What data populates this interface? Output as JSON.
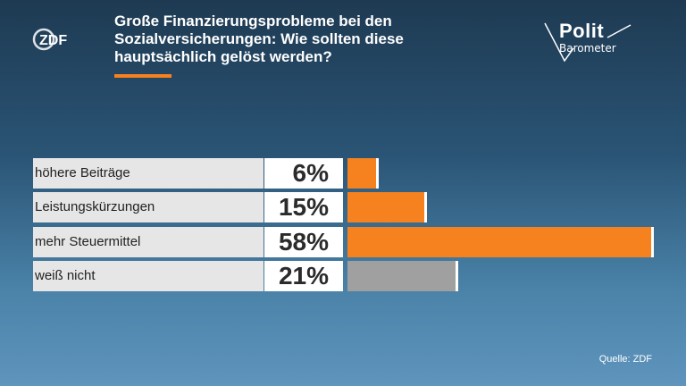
{
  "header": {
    "title": "Große Finanzierungsprobleme bei den Sozialversicherungen: Wie sollten diese hauptsächlich gelöst werden?",
    "brand_logo": "ZDF",
    "program_logo_line1": "Polit",
    "program_logo_line2": "Barometer"
  },
  "chart_data": {
    "type": "bar",
    "orientation": "horizontal",
    "categories": [
      "höhere Beiträge",
      "Leistungskürzungen",
      "mehr Steuermittel",
      "weiß nicht"
    ],
    "values": [
      6,
      15,
      58,
      21
    ],
    "value_labels": [
      "6%",
      "15%",
      "58%",
      "21%"
    ],
    "unit": "%",
    "bar_colors": [
      "#f5821f",
      "#f5821f",
      "#f5821f",
      "#a0a0a0"
    ],
    "xlim": [
      0,
      58
    ],
    "grid": false,
    "legend": "none"
  },
  "footer": {
    "source": "Quelle: ZDF"
  },
  "colors": {
    "accent": "#f5821f",
    "neutral_bar": "#a0a0a0",
    "background_top": "#1e3a52",
    "background_bottom": "#5f95bd"
  }
}
